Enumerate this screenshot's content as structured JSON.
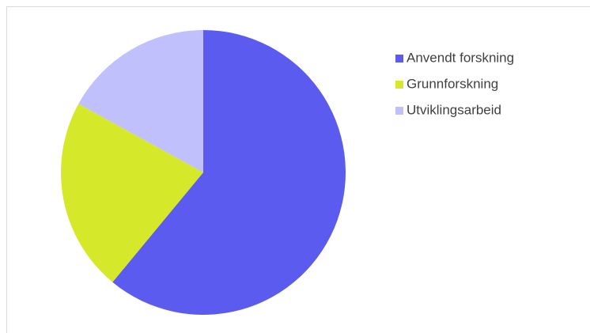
{
  "chart_data": {
    "type": "pie",
    "categories": [
      "Anvendt forskning",
      "Grunnforskning",
      "Utviklingsarbeid"
    ],
    "values": [
      61,
      22,
      17
    ],
    "colors": [
      "#5b5bef",
      "#d6e82a",
      "#c0c0fc"
    ],
    "legend": "right"
  }
}
